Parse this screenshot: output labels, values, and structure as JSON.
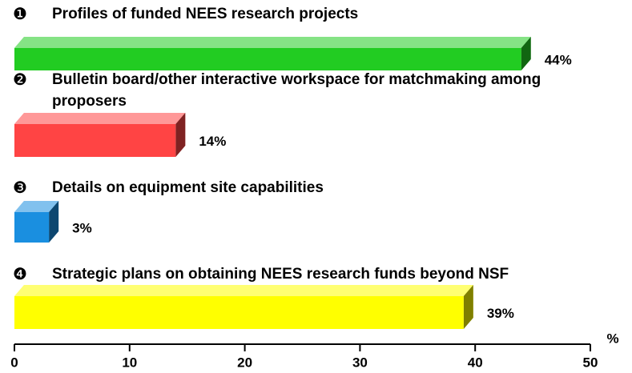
{
  "chart_data": {
    "type": "bar3d_horizontal",
    "markers": [
      "❶",
      "❷",
      "❸",
      "❹"
    ],
    "categories": [
      "Profiles of funded NEES research projects",
      "Bulletin board/other interactive workspace for matchmaking among proposers",
      "Details on equipment site capabilities",
      "Strategic plans on obtaining NEES research funds beyond NSF"
    ],
    "values": [
      44,
      14,
      3,
      39
    ],
    "value_labels": [
      "44%",
      "14%",
      "3%",
      "39%"
    ],
    "colors": [
      "#22cc22",
      "#ff4444",
      "#1a8fe0",
      "#ffff00"
    ],
    "xlabel": "%",
    "xlim": [
      0,
      50
    ],
    "xticks": [
      0,
      10,
      20,
      30,
      40,
      50
    ]
  }
}
